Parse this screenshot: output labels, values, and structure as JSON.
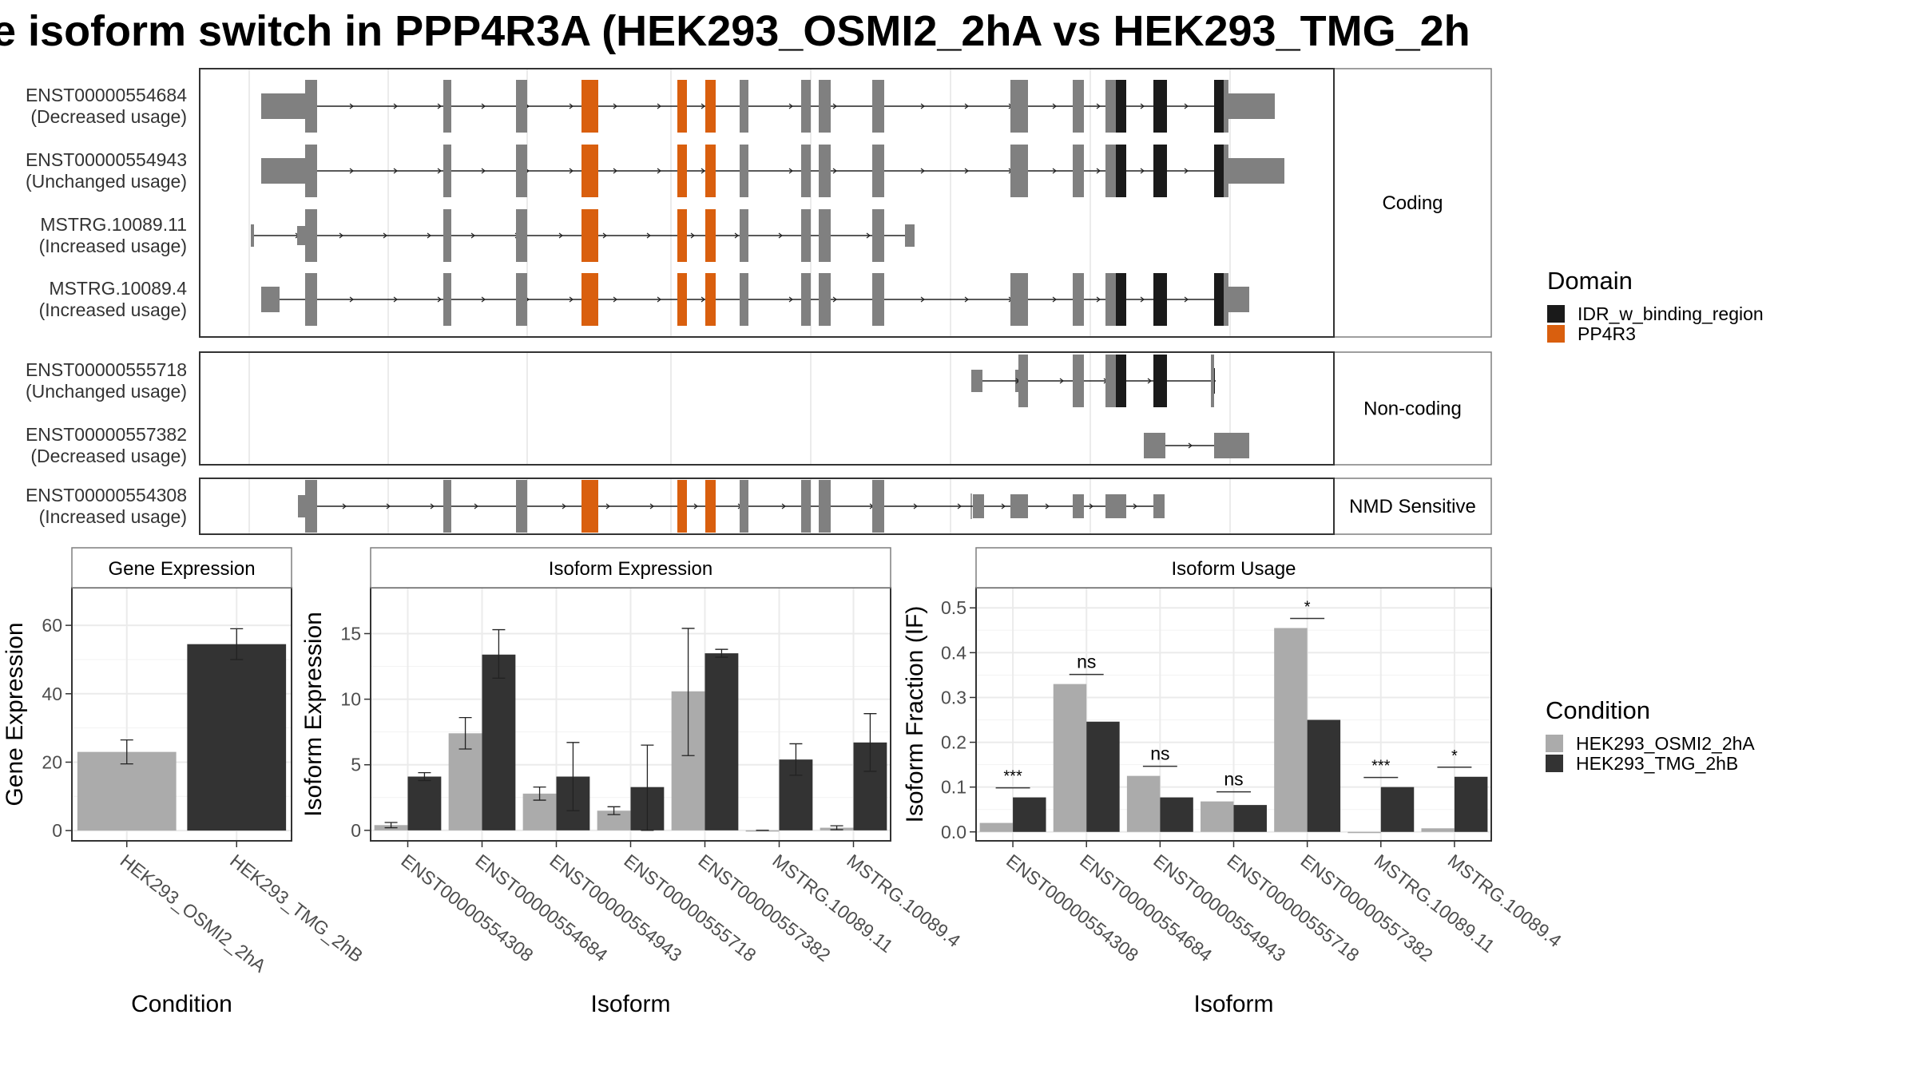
{
  "title": "e isoform switch in PPP4R3A (HEK293_OSMI2_2hA vs HEK293_TMG_2h",
  "colors": {
    "domain_idr": "#1a1a1a",
    "domain_pp4r3": "#d95f0e",
    "exon": "#808080",
    "cond_a": "#ababab",
    "cond_b": "#333333",
    "grid": "#ebebeb"
  },
  "legends": {
    "domain": {
      "title": "Domain",
      "items": [
        {
          "label": "IDR_w_binding_region",
          "color": "#1a1a1a"
        },
        {
          "label": "PP4R3",
          "color": "#d95f0e"
        }
      ]
    },
    "condition": {
      "title": "Condition",
      "items": [
        {
          "label": "HEK293_OSMI2_2hA",
          "color": "#ababab"
        },
        {
          "label": "HEK293_TMG_2hB",
          "color": "#333333"
        }
      ]
    }
  },
  "structure": {
    "panels": [
      {
        "label": "Coding",
        "transcripts": [
          {
            "id": "ENST00000554684",
            "usage": "(Decreased usage)"
          },
          {
            "id": "ENST00000554943",
            "usage": "(Unchanged usage)"
          },
          {
            "id": "MSTRG.10089.11",
            "usage": "(Increased usage)"
          },
          {
            "id": "MSTRG.10089.4",
            "usage": "(Increased usage)"
          }
        ]
      },
      {
        "label": "Non-coding",
        "transcripts": [
          {
            "id": "ENST00000555718",
            "usage": "(Unchanged usage)"
          },
          {
            "id": "ENST00000557382",
            "usage": "(Decreased usage)"
          }
        ]
      },
      {
        "label": "NMD Sensitive",
        "transcripts": [
          {
            "id": "ENST00000554308",
            "usage": "(Increased usage)"
          }
        ]
      }
    ]
  },
  "chart_data": [
    {
      "type": "bar",
      "title": "Gene Expression",
      "xlabel": "Condition",
      "ylabel": "Gene Expression",
      "categories": [
        "HEK293_OSMI2_2hA",
        "HEK293_TMG_2hB"
      ],
      "values": [
        23,
        54.5
      ],
      "errors": [
        [
          19.5,
          26.5
        ],
        [
          50,
          59
        ]
      ],
      "ylim": [
        -3,
        71
      ],
      "yticks": [
        0,
        20,
        40,
        60
      ]
    },
    {
      "type": "bar",
      "title": "Isoform Expression",
      "xlabel": "Isoform",
      "ylabel": "Isoform Expression",
      "categories": [
        "ENST00000554308",
        "ENST00000554684",
        "ENST00000554943",
        "ENST00000555718",
        "ENST00000557382",
        "MSTRG.10089.11",
        "MSTRG.10089.4"
      ],
      "series": [
        {
          "name": "HEK293_OSMI2_2hA",
          "values": [
            0.4,
            7.4,
            2.8,
            1.5,
            10.6,
            0.0,
            0.2
          ],
          "errors": [
            [
              0.2,
              0.6
            ],
            [
              6.2,
              8.6
            ],
            [
              2.3,
              3.3
            ],
            [
              1.2,
              1.8
            ],
            [
              5.7,
              15.4
            ],
            [
              0.0,
              0.0
            ],
            [
              0.05,
              0.35
            ]
          ]
        },
        {
          "name": "HEK293_TMG_2hB",
          "values": [
            4.1,
            13.4,
            4.1,
            3.3,
            13.5,
            5.4,
            6.7
          ],
          "errors": [
            [
              3.8,
              4.4
            ],
            [
              11.6,
              15.3
            ],
            [
              1.5,
              6.7
            ],
            [
              0.0,
              6.5
            ],
            [
              13.2,
              13.8
            ],
            [
              4.2,
              6.6
            ],
            [
              4.5,
              8.9
            ]
          ]
        }
      ],
      "ylim": [
        -0.8,
        18.5
      ],
      "yticks": [
        0,
        5,
        10,
        15
      ]
    },
    {
      "type": "bar",
      "title": "Isoform Usage",
      "xlabel": "Isoform",
      "ylabel": "Isoform Fraction (IF)",
      "categories": [
        "ENST00000554308",
        "ENST00000554684",
        "ENST00000554943",
        "ENST00000555718",
        "ENST00000557382",
        "MSTRG.10089.11",
        "MSTRG.10089.4"
      ],
      "series": [
        {
          "name": "HEK293_OSMI2_2hA",
          "values": [
            0.02,
            0.33,
            0.125,
            0.068,
            0.455,
            0.0,
            0.008
          ]
        },
        {
          "name": "HEK293_TMG_2hB",
          "values": [
            0.077,
            0.246,
            0.077,
            0.06,
            0.25,
            0.1,
            0.123
          ]
        }
      ],
      "significance": [
        "***",
        "ns",
        "ns",
        "ns",
        "*",
        "***",
        "*"
      ],
      "ylim": [
        -0.02,
        0.545
      ],
      "yticks": [
        0.0,
        0.1,
        0.2,
        0.3,
        0.4,
        0.5
      ]
    }
  ]
}
